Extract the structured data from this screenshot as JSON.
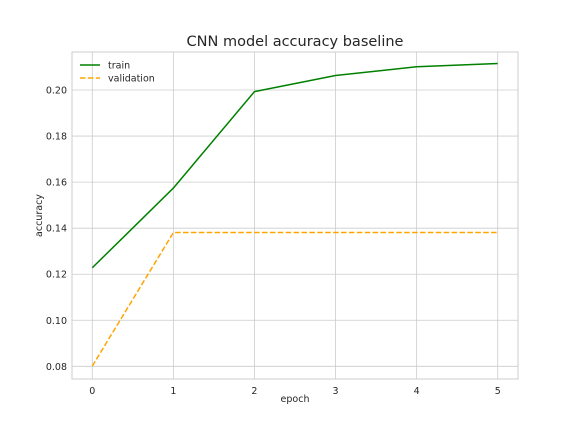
{
  "chart_data": {
    "type": "line",
    "title": "CNN model accuracy baseline",
    "xlabel": "epoch",
    "ylabel": "accuracy",
    "x": [
      0,
      1,
      2,
      3,
      4,
      5
    ],
    "xlim": [
      -0.25,
      5.25
    ],
    "ylim": [
      0.0745,
      0.2165
    ],
    "xticks": [
      "0",
      "1",
      "2",
      "3",
      "4",
      "5"
    ],
    "yticks": [
      "0.08",
      "0.10",
      "0.12",
      "0.14",
      "0.16",
      "0.18",
      "0.20"
    ],
    "grid": true,
    "legend_position": "top-left",
    "series": [
      {
        "name": "train",
        "color": "#008000",
        "style": "solid",
        "values": [
          0.1228,
          0.1574,
          0.1993,
          0.2063,
          0.2101,
          0.2115
        ]
      },
      {
        "name": "validation",
        "color": "#ffa500",
        "style": "dashed",
        "values": [
          0.0801,
          0.1381,
          0.1381,
          0.1381,
          0.1381,
          0.1381
        ]
      }
    ]
  }
}
